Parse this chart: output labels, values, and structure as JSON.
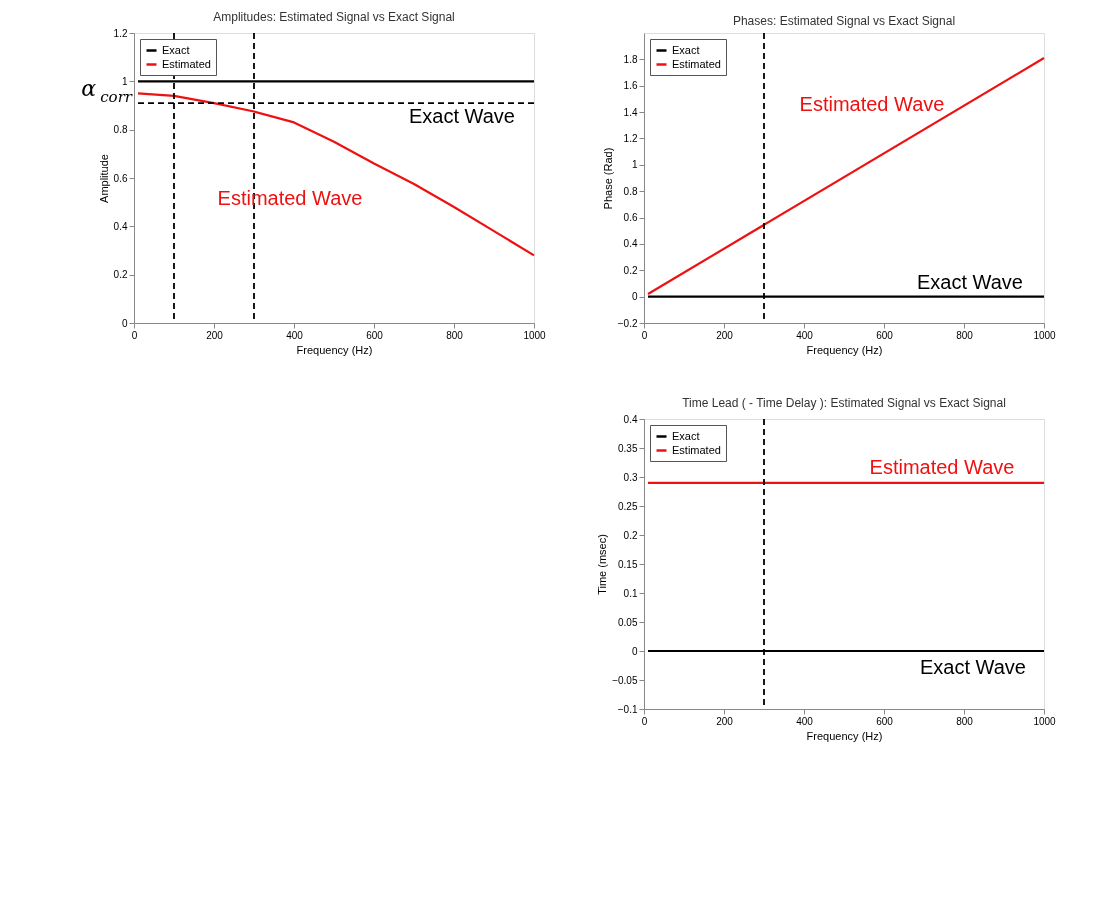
{
  "chart_data": [
    {
      "type": "line",
      "title": "Amplitudes:  Estimated Signal  vs  Exact Signal",
      "xlabel": "Frequency (Hz)",
      "ylabel": "Amplitude",
      "xlim": [
        0,
        1000
      ],
      "xticks": [
        0,
        200,
        400,
        600,
        800,
        1000
      ],
      "ylim": [
        0,
        1.2
      ],
      "yticks": [
        0,
        0.2,
        0.4,
        0.6,
        0.8,
        1,
        1.2
      ],
      "x": [
        10,
        100,
        200,
        300,
        400,
        500,
        600,
        700,
        800,
        900,
        1000
      ],
      "series": [
        {
          "name": "Exact",
          "color": "#000000",
          "values": [
            1,
            1,
            1,
            1,
            1,
            1,
            1,
            1,
            1,
            1,
            1
          ]
        },
        {
          "name": "Estimated",
          "color": "#ee1111",
          "values": [
            0.95,
            0.94,
            0.91,
            0.875,
            0.83,
            0.75,
            0.66,
            0.575,
            0.48,
            0.38,
            0.28
          ]
        }
      ],
      "ref_lines": [
        {
          "axis": "x",
          "value": 100,
          "line_style": "dashed"
        },
        {
          "axis": "x",
          "value": 300,
          "line_style": "dashed"
        },
        {
          "axis": "y",
          "value": 0.91,
          "label": "α$_{corr}$",
          "line_style": "dashed"
        }
      ],
      "annotations": [
        "Exact Wave",
        "Estimated Wave"
      ],
      "legend": "top left",
      "grid": false,
      "line_style": "solid",
      "marker": "none"
    },
    {
      "type": "line",
      "title": "Phases:  Estimated Signal  vs  Exact Signal",
      "xlabel": "Frequency (Hz)",
      "ylabel": "Phase (Rad)",
      "xlim": [
        0,
        1000
      ],
      "xticks": [
        0,
        200,
        400,
        600,
        800,
        1000
      ],
      "ylim": [
        -0.2,
        2.0
      ],
      "yticks": [
        -0.2,
        0,
        0.2,
        0.4,
        0.6,
        0.8,
        1,
        1.2,
        1.4,
        1.6,
        1.8
      ],
      "x": [
        10,
        1000
      ],
      "series": [
        {
          "name": "Exact",
          "color": "#000000",
          "values": [
            0,
            0
          ]
        },
        {
          "name": "Estimated",
          "color": "#ee1111",
          "values": [
            0.02,
            1.81
          ]
        }
      ],
      "ref_lines": [
        {
          "axis": "x",
          "value": 300,
          "line_style": "dashed"
        }
      ],
      "annotations": [
        "Exact Wave",
        "Estimated Wave"
      ],
      "legend": "top left",
      "grid": false,
      "line_style": "solid",
      "marker": "none"
    },
    {
      "type": "line",
      "title": "Time Lead ( - Time Delay ):  Estimated Signal  vs  Exact Signal",
      "xlabel": "Frequency (Hz)",
      "ylabel": "Time (msec)",
      "xlim": [
        0,
        1000
      ],
      "xticks": [
        0,
        200,
        400,
        600,
        800,
        1000
      ],
      "ylim": [
        -0.1,
        0.4
      ],
      "yticks": [
        -0.1,
        -0.05,
        0,
        0.05,
        0.1,
        0.15,
        0.2,
        0.25,
        0.3,
        0.35,
        0.4
      ],
      "x": [
        10,
        1000
      ],
      "series": [
        {
          "name": "Exact",
          "color": "#000000",
          "values": [
            0,
            0
          ]
        },
        {
          "name": "Estimated",
          "color": "#ee1111",
          "values": [
            0.29,
            0.29
          ]
        }
      ],
      "ref_lines": [
        {
          "axis": "x",
          "value": 300,
          "line_style": "dashed"
        }
      ],
      "annotations": [
        "Exact Wave",
        "Estimated Wave"
      ],
      "legend": "top left",
      "grid": false,
      "line_style": "solid",
      "marker": "none"
    }
  ]
}
